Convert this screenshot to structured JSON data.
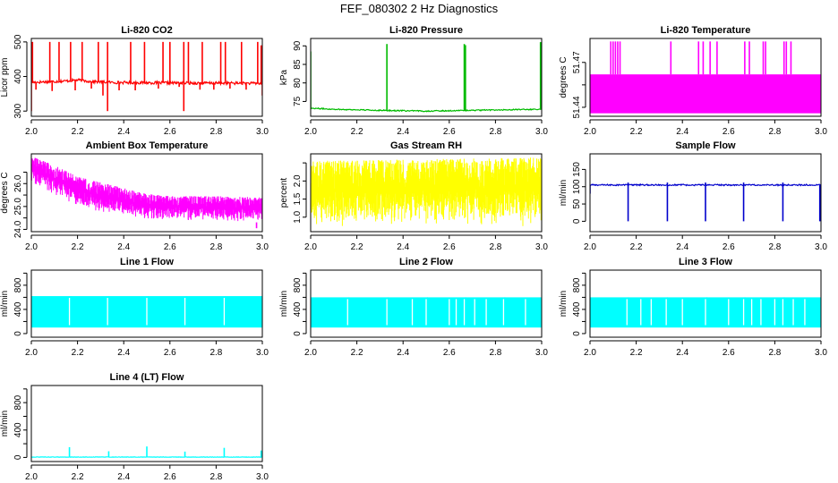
{
  "figure_title": "FEF_080302  2 Hz Diagnostics",
  "chart_data": [
    {
      "type": "line",
      "title": "Li-820 CO2",
      "ylabel": "Licor ppm",
      "color": "#ff0000",
      "xlim": [
        2.0,
        3.0
      ],
      "ylim": [
        285,
        510
      ],
      "xticks": [
        2.0,
        2.2,
        2.4,
        2.6,
        2.8,
        3.0
      ],
      "xtick_labels": [
        "2.0",
        "2.2",
        "2.4",
        "2.6",
        "2.8",
        "3.0"
      ],
      "yticks": [
        300,
        400,
        500
      ],
      "ytick_labels": [
        "300",
        "400",
        "500"
      ],
      "series": [
        {
          "style": "signal",
          "base": [
            [
              2.0,
              383
            ],
            [
              2.15,
              387
            ],
            [
              2.2,
              390
            ],
            [
              2.25,
              386
            ],
            [
              2.35,
              383
            ],
            [
              2.5,
              382
            ],
            [
              2.7,
              381
            ],
            [
              2.85,
              381
            ],
            [
              3.0,
              380
            ]
          ],
          "noise": 4,
          "spikes_up": [
            [
              2.005,
              500
            ],
            [
              2.08,
              500
            ],
            [
              2.12,
              500
            ],
            [
              2.17,
              500
            ],
            [
              2.22,
              500
            ],
            [
              2.29,
              500
            ],
            [
              2.33,
              500
            ],
            [
              2.43,
              500
            ],
            [
              2.49,
              500
            ],
            [
              2.57,
              500
            ],
            [
              2.6,
              500
            ],
            [
              2.66,
              500
            ],
            [
              2.68,
              500
            ],
            [
              2.74,
              500
            ],
            [
              2.82,
              500
            ],
            [
              2.84,
              500
            ],
            [
              2.91,
              500
            ],
            [
              2.98,
              500
            ],
            [
              2.995,
              490
            ]
          ],
          "spikes_down": [
            [
              2.0,
              300
            ],
            [
              2.02,
              362
            ],
            [
              2.09,
              358
            ],
            [
              2.19,
              360
            ],
            [
              2.26,
              365
            ],
            [
              2.31,
              345
            ],
            [
              2.33,
              300
            ],
            [
              2.38,
              360
            ],
            [
              2.45,
              360
            ],
            [
              2.55,
              365
            ],
            [
              2.64,
              370
            ],
            [
              2.66,
              300
            ],
            [
              2.73,
              362
            ],
            [
              2.79,
              362
            ],
            [
              2.86,
              365
            ],
            [
              2.93,
              362
            ],
            [
              3.0,
              345
            ]
          ]
        }
      ]
    },
    {
      "type": "line",
      "title": "Li-820 Pressure",
      "ylabel": "kPa",
      "color": "#00bb00",
      "xlim": [
        2.0,
        3.0
      ],
      "ylim": [
        71,
        92
      ],
      "xticks": [
        2.0,
        2.2,
        2.4,
        2.6,
        2.8,
        3.0
      ],
      "xtick_labels": [
        "2.0",
        "2.2",
        "2.4",
        "2.6",
        "2.8",
        "3.0"
      ],
      "yticks": [
        75,
        80,
        85,
        90
      ],
      "ytick_labels": [
        "75",
        "80",
        "85",
        "90"
      ],
      "series": [
        {
          "style": "signal",
          "base": [
            [
              2.0,
              73.2
            ],
            [
              2.1,
              72.9
            ],
            [
              2.3,
              72.6
            ],
            [
              2.5,
              72.4
            ],
            [
              2.7,
              72.6
            ],
            [
              2.9,
              72.8
            ],
            [
              3.0,
              72.9
            ]
          ],
          "noise": 0.15,
          "spikes_up": [
            [
              2.0,
              88.5
            ],
            [
              2.33,
              90.5
            ],
            [
              2.665,
              90.5
            ],
            [
              2.67,
              90.2
            ],
            [
              2.995,
              91.0
            ]
          ],
          "spikes_down": []
        }
      ]
    },
    {
      "type": "line",
      "title": "Li-820 Temperature",
      "ylabel": "degrees C",
      "color": "#ff00ff",
      "xlim": [
        2.0,
        3.0
      ],
      "ylim": [
        51.434,
        51.486
      ],
      "xticks": [
        2.0,
        2.2,
        2.4,
        2.6,
        2.8,
        3.0
      ],
      "xtick_labels": [
        "2.0",
        "2.2",
        "2.4",
        "2.6",
        "2.8",
        "3.0"
      ],
      "yticks": [
        51.44,
        51.47
      ],
      "ytick_labels": [
        "51.44",
        "51.47"
      ],
      "extra_yticks": [
        51.455
      ],
      "series": [
        {
          "style": "band",
          "low": 51.436,
          "high": 51.462,
          "spikes_up": [
            [
              2.09,
              51.484
            ],
            [
              2.1,
              51.484
            ],
            [
              2.11,
              51.484
            ],
            [
              2.12,
              51.484
            ],
            [
              2.13,
              51.484
            ],
            [
              2.35,
              51.484
            ],
            [
              2.47,
              51.484
            ],
            [
              2.49,
              51.484
            ],
            [
              2.52,
              51.484
            ],
            [
              2.55,
              51.484
            ],
            [
              2.67,
              51.484
            ],
            [
              2.69,
              51.484
            ],
            [
              2.75,
              51.484
            ],
            [
              2.76,
              51.484
            ],
            [
              2.84,
              51.484
            ],
            [
              2.85,
              51.484
            ],
            [
              2.87,
              51.484
            ]
          ]
        }
      ]
    },
    {
      "type": "line",
      "title": "Ambient Box Temperature",
      "ylabel": "degrees C",
      "color": "#ff00ff",
      "xlim": [
        2.0,
        3.0
      ],
      "ylim": [
        23.9,
        27.3
      ],
      "xticks": [
        2.0,
        2.2,
        2.4,
        2.6,
        2.8,
        3.0
      ],
      "xtick_labels": [
        "2.0",
        "2.2",
        "2.4",
        "2.6",
        "2.8",
        "3.0"
      ],
      "yticks": [
        24.0,
        25.0,
        26.0
      ],
      "ytick_labels": [
        "24.0",
        "25.0",
        "26.0"
      ],
      "extra_yticks": [
        24.5,
        25.5,
        26.5
      ],
      "series": [
        {
          "style": "noiseband",
          "low": [
            [
              2.0,
              26.0
            ],
            [
              2.1,
              25.5
            ],
            [
              2.2,
              25.0
            ],
            [
              2.3,
              24.75
            ],
            [
              2.4,
              24.6
            ],
            [
              2.5,
              24.45
            ],
            [
              2.6,
              24.4
            ],
            [
              2.8,
              24.35
            ],
            [
              3.0,
              24.3
            ]
          ],
          "high": [
            [
              2.0,
              27.2
            ],
            [
              2.1,
              26.8
            ],
            [
              2.2,
              26.3
            ],
            [
              2.3,
              26.05
            ],
            [
              2.4,
              25.8
            ],
            [
              2.5,
              25.55
            ],
            [
              2.6,
              25.45
            ],
            [
              2.8,
              25.45
            ],
            [
              3.0,
              25.4
            ]
          ],
          "spikes_up": [],
          "spikes_down": [
            [
              2.975,
              24.05
            ]
          ]
        }
      ]
    },
    {
      "type": "line",
      "title": "Gas Stream RH",
      "ylabel": "percent",
      "color": "#ffff00",
      "xlim": [
        2.0,
        3.0
      ],
      "ylim": [
        0.6,
        2.75
      ],
      "xticks": [
        2.0,
        2.2,
        2.4,
        2.6,
        2.8,
        3.0
      ],
      "xtick_labels": [
        "2.0",
        "2.2",
        "2.4",
        "2.6",
        "2.8",
        "3.0"
      ],
      "yticks": [
        1.0,
        1.5,
        2.0
      ],
      "ytick_labels": [
        "1.0",
        "1.5",
        "2.0"
      ],
      "extra_yticks": [
        2.5
      ],
      "series": [
        {
          "style": "noiseband",
          "low": [
            [
              2.0,
              0.75
            ],
            [
              3.0,
              0.75
            ]
          ],
          "high": [
            [
              2.0,
              2.55
            ],
            [
              3.0,
              2.65
            ]
          ],
          "spikes_up": [],
          "spikes_down": []
        }
      ]
    },
    {
      "type": "line",
      "title": "Sample Flow",
      "ylabel": "ml/min",
      "color": "#0000cc",
      "xlim": [
        2.0,
        3.0
      ],
      "ylim": [
        -30,
        195
      ],
      "xticks": [
        2.0,
        2.2,
        2.4,
        2.6,
        2.8,
        3.0
      ],
      "xtick_labels": [
        "2.0",
        "2.2",
        "2.4",
        "2.6",
        "2.8",
        "3.0"
      ],
      "yticks": [
        0,
        50,
        100,
        150
      ],
      "ytick_labels": [
        "0",
        "50",
        "100",
        "150"
      ],
      "series": [
        {
          "style": "signal",
          "base": [
            [
              2.0,
              105
            ],
            [
              3.0,
              105
            ]
          ],
          "noise": 2,
          "spikes_up": [
            [
              2.165,
              112
            ],
            [
              2.335,
              112
            ],
            [
              2.5,
              112
            ],
            [
              2.665,
              112
            ],
            [
              2.835,
              112
            ]
          ],
          "spikes_down": [
            [
              2.0,
              80
            ],
            [
              2.165,
              0
            ],
            [
              2.335,
              0
            ],
            [
              2.5,
              0
            ],
            [
              2.665,
              0
            ],
            [
              2.835,
              0
            ],
            [
              2.995,
              0
            ]
          ]
        }
      ]
    },
    {
      "type": "line",
      "title": "Line 1 Flow",
      "ylabel": "ml/min",
      "color": "#00ffff",
      "xlim": [
        2.0,
        3.0
      ],
      "ylim": [
        -60,
        1050
      ],
      "xticks": [
        2.0,
        2.2,
        2.4,
        2.6,
        2.8,
        3.0
      ],
      "xtick_labels": [
        "2.0",
        "2.2",
        "2.4",
        "2.6",
        "2.8",
        "3.0"
      ],
      "yticks": [
        0,
        400,
        800
      ],
      "ytick_labels": [
        "0",
        "400",
        "800"
      ],
      "extra_yticks": [
        200,
        600,
        1000
      ],
      "series": [
        {
          "style": "block",
          "low": 100,
          "high": 620,
          "gaps": [
            2.165,
            2.33,
            2.5,
            2.665,
            2.835
          ],
          "low_notches": [
            2.165,
            2.33,
            2.5,
            2.665,
            2.835
          ],
          "notch_level": 120
        }
      ]
    },
    {
      "type": "line",
      "title": "Line 2 Flow",
      "ylabel": "ml/min",
      "color": "#00ffff",
      "xlim": [
        2.0,
        3.0
      ],
      "ylim": [
        -60,
        1050
      ],
      "xticks": [
        2.0,
        2.2,
        2.4,
        2.6,
        2.8,
        3.0
      ],
      "xtick_labels": [
        "2.0",
        "2.2",
        "2.4",
        "2.6",
        "2.8",
        "3.0"
      ],
      "yticks": [
        0,
        400,
        800
      ],
      "ytick_labels": [
        "0",
        "400",
        "800"
      ],
      "extra_yticks": [
        200,
        600,
        1000
      ],
      "series": [
        {
          "style": "block",
          "low": 100,
          "high": 600,
          "gaps": [
            2.16,
            2.33,
            2.44,
            2.5,
            2.6,
            2.63,
            2.665,
            2.71,
            2.76,
            2.835,
            2.93
          ],
          "low_notches": [
            2.16,
            2.33,
            2.5,
            2.665,
            2.835
          ],
          "notch_level": 120
        }
      ]
    },
    {
      "type": "line",
      "title": "Line 3 Flow",
      "ylabel": "ml/min",
      "color": "#00ffff",
      "xlim": [
        2.0,
        3.0
      ],
      "ylim": [
        -60,
        1050
      ],
      "xticks": [
        2.0,
        2.2,
        2.4,
        2.6,
        2.8,
        3.0
      ],
      "xtick_labels": [
        "2.0",
        "2.2",
        "2.4",
        "2.6",
        "2.8",
        "3.0"
      ],
      "yticks": [
        0,
        400,
        800
      ],
      "ytick_labels": [
        "0",
        "400",
        "800"
      ],
      "extra_yticks": [
        200,
        600,
        1000
      ],
      "series": [
        {
          "style": "block",
          "low": 100,
          "high": 600,
          "gaps": [
            2.16,
            2.22,
            2.265,
            2.33,
            2.4,
            2.5,
            2.6,
            2.665,
            2.7,
            2.74,
            2.8,
            2.835,
            2.88,
            2.93
          ],
          "low_notches": [
            2.16,
            2.33,
            2.5,
            2.665,
            2.835
          ],
          "notch_level": 120
        }
      ]
    },
    {
      "type": "line",
      "title": "Line 4 (LT) Flow",
      "ylabel": "ml/min",
      "color": "#00ffff",
      "xlim": [
        2.0,
        3.0
      ],
      "ylim": [
        -60,
        1050
      ],
      "xticks": [
        2.0,
        2.2,
        2.4,
        2.6,
        2.8,
        3.0
      ],
      "xtick_labels": [
        "2.0",
        "2.2",
        "2.4",
        "2.6",
        "2.8",
        "3.0"
      ],
      "yticks": [
        0,
        400,
        800
      ],
      "ytick_labels": [
        "0",
        "400",
        "800"
      ],
      "extra_yticks": [
        200,
        600,
        1000
      ],
      "series": [
        {
          "style": "signal",
          "base": [
            [
              2.0,
              5
            ],
            [
              3.0,
              5
            ]
          ],
          "noise": 3,
          "spikes_up": [
            [
              2.165,
              150
            ],
            [
              2.335,
              90
            ],
            [
              2.5,
              160
            ],
            [
              2.665,
              85
            ],
            [
              2.835,
              140
            ],
            [
              2.995,
              100
            ]
          ],
          "spikes_down": []
        }
      ]
    }
  ]
}
